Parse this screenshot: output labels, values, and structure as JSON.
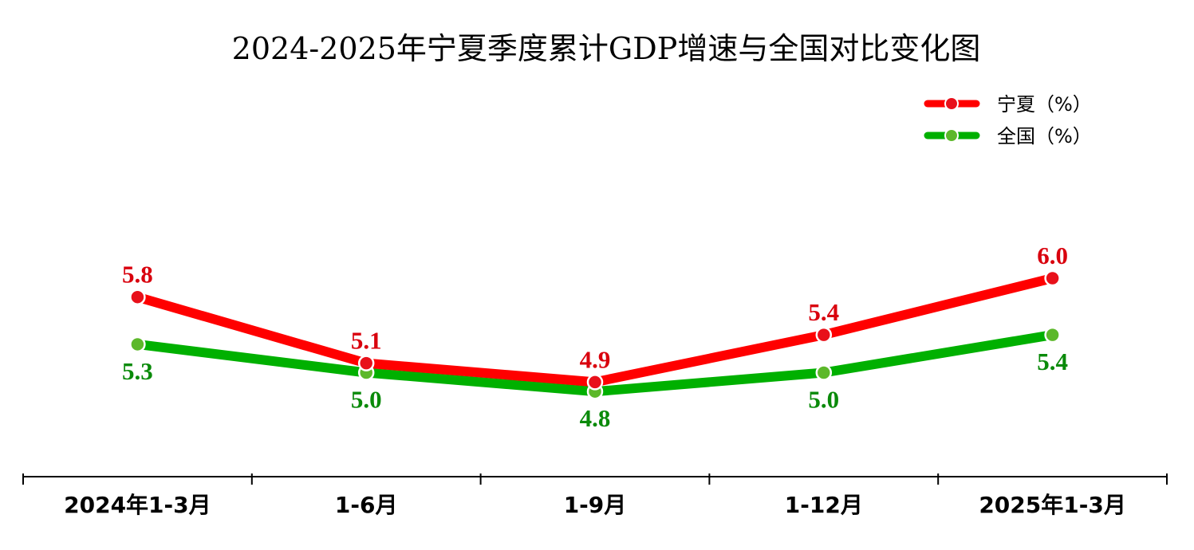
{
  "chart_data": {
    "type": "line",
    "title": "2024-2025年宁夏季度累计GDP增速与全国对比变化图",
    "categories": [
      "2024年1-3月",
      "1-6月",
      "1-9月",
      "1-12月",
      "2025年1-3月"
    ],
    "series": [
      {
        "name": "宁夏（%）",
        "values": [
          5.8,
          5.1,
          4.9,
          5.4,
          6.0
        ],
        "color": "#ff0000",
        "marker_color": "#e8101a",
        "label_color": "#d9000d",
        "label_position": "above"
      },
      {
        "name": "全国（%）",
        "values": [
          5.3,
          5.0,
          4.8,
          5.0,
          5.4
        ],
        "color": "#00b000",
        "marker_color": "#5cb82a",
        "label_color": "#0a8a0a",
        "label_position": "below"
      }
    ],
    "ylim": [
      0,
      10
    ],
    "xlabel": "",
    "ylabel": "",
    "grid": false,
    "legend_position": "top-right"
  }
}
